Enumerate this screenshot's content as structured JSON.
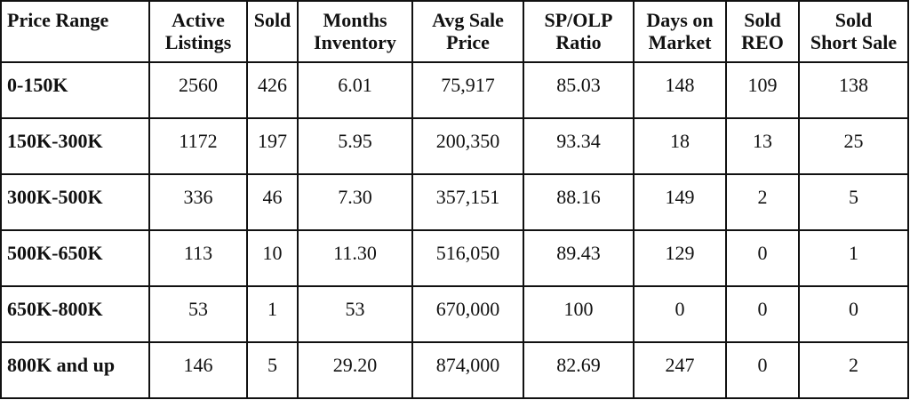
{
  "headers": [
    {
      "line1": "Price Range",
      "line2": ""
    },
    {
      "line1": "Active",
      "line2": "Listings"
    },
    {
      "line1": "Sold",
      "line2": ""
    },
    {
      "line1": "Months",
      "line2": "Inventory"
    },
    {
      "line1": "Avg Sale",
      "line2": "Price"
    },
    {
      "line1": "SP/OLP",
      "line2": "Ratio"
    },
    {
      "line1": "Days on",
      "line2": "Market"
    },
    {
      "line1": "Sold",
      "line2": "REO"
    },
    {
      "line1": "Sold",
      "line2": "Short Sale"
    }
  ],
  "rows": [
    [
      "0-150K",
      "2560",
      "426",
      "6.01",
      "75,917",
      "85.03",
      "148",
      "109",
      "138"
    ],
    [
      "150K-300K",
      "1172",
      "197",
      "5.95",
      "200,350",
      "93.34",
      "18",
      "13",
      "25"
    ],
    [
      "300K-500K",
      "336",
      "46",
      "7.30",
      "357,151",
      "88.16",
      "149",
      "2",
      "5"
    ],
    [
      "500K-650K",
      "113",
      "10",
      "11.30",
      "516,050",
      "89.43",
      "129",
      "0",
      "1"
    ],
    [
      "650K-800K",
      "53",
      "1",
      "53",
      "670,000",
      "100",
      "0",
      "0",
      "0"
    ],
    [
      "800K and up",
      "146",
      "5",
      "29.20",
      "874,000",
      "82.69",
      "247",
      "0",
      "2"
    ]
  ]
}
